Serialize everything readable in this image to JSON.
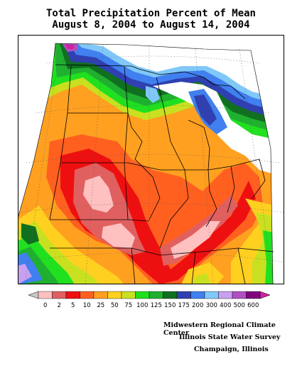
{
  "title": {
    "line1": "Total Precipitation Percent of Mean",
    "line2": "August 8, 2004 to August 14, 2004"
  },
  "legend": {
    "labels": [
      "0",
      "2",
      "5",
      "10",
      "25",
      "50",
      "75",
      "100",
      "125",
      "150",
      "175",
      "200",
      "300",
      "400",
      "500",
      "600"
    ],
    "colors": [
      "#c8c8c8",
      "#ffc0c0",
      "#e06060",
      "#ee1010",
      "#ff6020",
      "#ffa020",
      "#ffd020",
      "#c8e020",
      "#20e020",
      "#20b030",
      "#107020",
      "#3040b0",
      "#4080f0",
      "#80c8f8",
      "#c8a0f0",
      "#b050c0",
      "#800080",
      "#d020a0"
    ]
  },
  "credits": {
    "line1": "Midwestern Regional Climate Center",
    "line2": "Illinois State Water Survey",
    "line3": "Champaign, Illinois"
  }
}
